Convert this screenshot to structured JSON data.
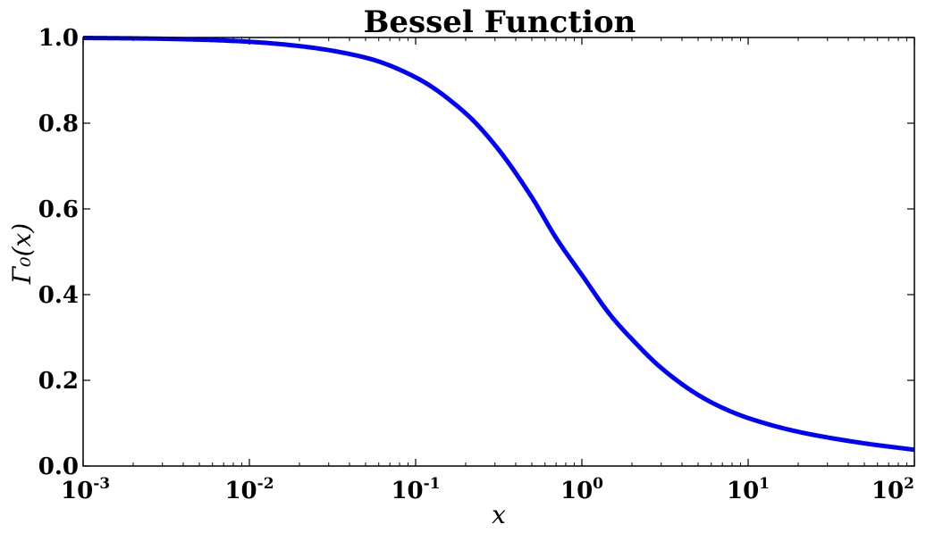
{
  "chart_data": {
    "type": "line",
    "title": "Bessel Function",
    "xlabel": "x",
    "ylabel": "Γ₀(x)",
    "xscale": "log",
    "xlim": [
      0.001,
      100
    ],
    "ylim": [
      0.0,
      1.0
    ],
    "xticks": [
      {
        "value": 0.001,
        "base": "10",
        "exp": "-3"
      },
      {
        "value": 0.01,
        "base": "10",
        "exp": "-2"
      },
      {
        "value": 0.1,
        "base": "10",
        "exp": "-1"
      },
      {
        "value": 1,
        "base": "10",
        "exp": "0"
      },
      {
        "value": 10,
        "base": "10",
        "exp": "1"
      },
      {
        "value": 100,
        "base": "10",
        "exp": "2"
      }
    ],
    "yticks": [
      {
        "value": 0.0,
        "label": "0.0"
      },
      {
        "value": 0.2,
        "label": "0.2"
      },
      {
        "value": 0.4,
        "label": "0.4"
      },
      {
        "value": 0.6,
        "label": "0.6"
      },
      {
        "value": 0.8,
        "label": "0.8"
      },
      {
        "value": 1.0,
        "label": "1.0"
      }
    ],
    "grid": false,
    "series": [
      {
        "color": "#0000ff",
        "x": [
          0.001,
          0.002,
          0.005,
          0.01,
          0.02,
          0.05,
          0.1,
          0.2,
          0.3,
          0.5,
          0.7,
          1,
          1.5,
          2,
          3,
          5,
          7,
          10,
          20,
          50,
          100
        ],
        "y": [
          0.999,
          0.998,
          0.995,
          0.99,
          0.98,
          0.953,
          0.907,
          0.823,
          0.749,
          0.627,
          0.532,
          0.446,
          0.35,
          0.296,
          0.229,
          0.166,
          0.136,
          0.112,
          0.08,
          0.053,
          0.038
        ]
      }
    ]
  }
}
